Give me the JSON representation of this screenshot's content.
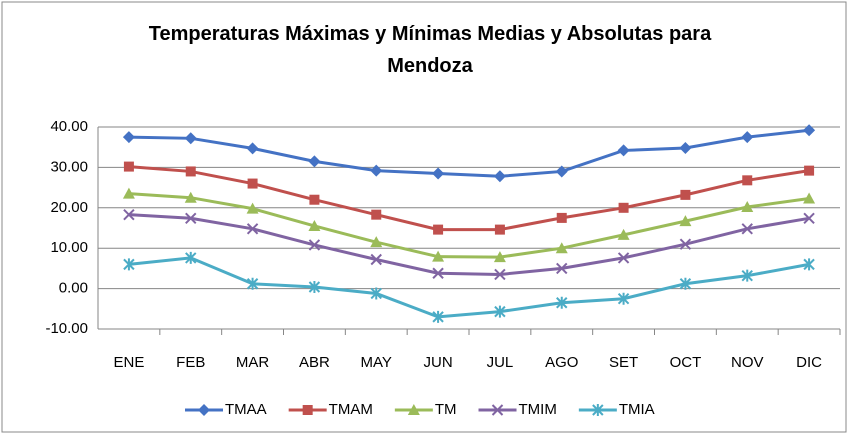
{
  "chart_data": {
    "type": "line",
    "title": "Temperaturas Máximas y Mínimas Medias y Absolutas para Mendoza",
    "categories": [
      "ENE",
      "FEB",
      "MAR",
      "ABR",
      "MAY",
      "JUN",
      "JUL",
      "AGO",
      "SET",
      "OCT",
      "NOV",
      "DIC"
    ],
    "series": [
      {
        "name": "TMAA",
        "color": "#4472c4",
        "marker": "diamond",
        "values": [
          37.5,
          37.2,
          34.7,
          31.5,
          29.2,
          28.5,
          27.8,
          29.0,
          34.2,
          34.8,
          37.5,
          39.2
        ]
      },
      {
        "name": "TMAM",
        "color": "#c0504d",
        "marker": "square",
        "values": [
          30.2,
          29.0,
          26.0,
          22.0,
          18.3,
          14.6,
          14.6,
          17.5,
          20.0,
          23.2,
          26.8,
          29.2
        ]
      },
      {
        "name": "TM",
        "color": "#9bbb59",
        "marker": "triangle",
        "values": [
          23.5,
          22.5,
          19.8,
          15.5,
          11.5,
          7.9,
          7.8,
          10.0,
          13.3,
          16.7,
          20.2,
          22.3
        ]
      },
      {
        "name": "TMIM",
        "color": "#8064a2",
        "marker": "x",
        "values": [
          18.3,
          17.4,
          14.8,
          10.8,
          7.2,
          3.8,
          3.5,
          5.0,
          7.6,
          11.0,
          14.8,
          17.4
        ]
      },
      {
        "name": "TMIA",
        "color": "#4bacc6",
        "marker": "star",
        "values": [
          6.0,
          7.6,
          1.2,
          0.4,
          -1.2,
          -7.0,
          -5.7,
          -3.5,
          -2.5,
          1.2,
          3.2,
          6.0
        ]
      }
    ],
    "ylim": [
      -10,
      40
    ],
    "yticks": [
      {
        "value": -10,
        "label": "-10.00"
      },
      {
        "value": 0,
        "label": "0.00"
      },
      {
        "value": 10,
        "label": "10.00"
      },
      {
        "value": 20,
        "label": "20.00"
      },
      {
        "value": 30,
        "label": "30.00"
      },
      {
        "value": 40,
        "label": "40.00"
      }
    ],
    "grid": true,
    "legend": "bottom"
  }
}
